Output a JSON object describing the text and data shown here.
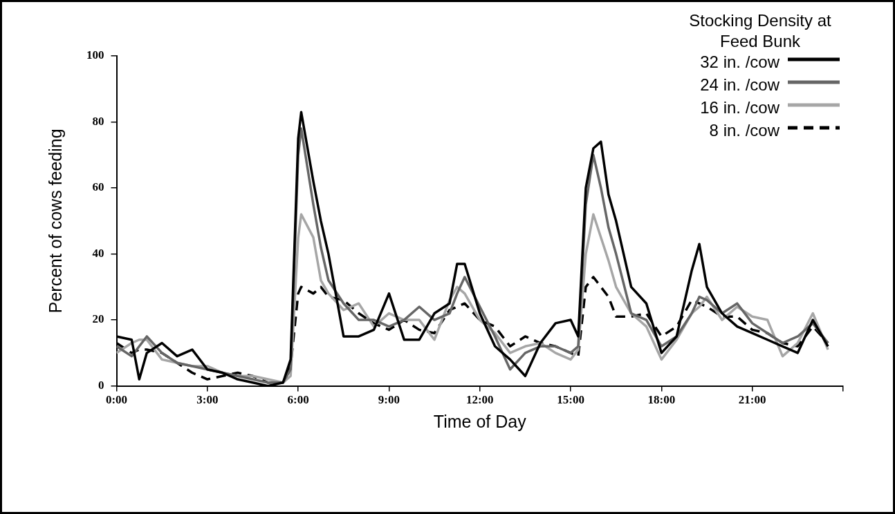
{
  "chart_data": {
    "type": "line",
    "xlabel": "Time of Day",
    "ylabel": "Percent of cows feeding",
    "legend_title": "Stocking Density at Feed Bunk",
    "legend": "top right",
    "grid": false,
    "marker": "none",
    "xlim": [
      0,
      24
    ],
    "xticks": [
      {
        "value": 0,
        "label": "0:00"
      },
      {
        "value": 3,
        "label": "3:00"
      },
      {
        "value": 6,
        "label": "6:00"
      },
      {
        "value": 9,
        "label": "9:00"
      },
      {
        "value": 12,
        "label": "12:00"
      },
      {
        "value": 15,
        "label": "15:00"
      },
      {
        "value": 18,
        "label": "18:00"
      },
      {
        "value": 21,
        "label": "21:00"
      },
      {
        "value": 24,
        "label": null
      }
    ],
    "ylim": [
      0,
      100
    ],
    "yticks": [
      0,
      20,
      40,
      60,
      80,
      100
    ],
    "x": [
      0,
      0.5,
      0.75,
      1,
      1.5,
      2,
      2.5,
      3,
      3.5,
      4,
      4.5,
      5,
      5.5,
      5.75,
      6,
      6.1,
      6.5,
      6.75,
      7,
      7.5,
      8,
      8.5,
      9,
      9.5,
      10,
      10.5,
      11,
      11.25,
      11.5,
      12,
      12.5,
      13,
      13.5,
      14,
      14.5,
      15,
      15.25,
      15.5,
      15.75,
      16,
      16.25,
      16.5,
      17,
      17.5,
      18,
      18.5,
      19,
      19.25,
      19.5,
      20,
      20.5,
      21,
      21.5,
      22,
      22.5,
      23,
      23.5
    ],
    "series": [
      {
        "name": "32 in. /cow",
        "color": "#000000",
        "line_style": "solid",
        "values": [
          15,
          14,
          2,
          10,
          13,
          9,
          11,
          5,
          4,
          2,
          1,
          0,
          1,
          8,
          75,
          83,
          62,
          50,
          40,
          15,
          15,
          17,
          28,
          14,
          14,
          22,
          25,
          37,
          37,
          22,
          12,
          8,
          3,
          13,
          19,
          20,
          15,
          60,
          72,
          74,
          58,
          50,
          30,
          25,
          10,
          15,
          35,
          43,
          30,
          22,
          18,
          16,
          14,
          12,
          10,
          20,
          12
        ]
      },
      {
        "name": "24 in. /cow",
        "color": "#666666",
        "line_style": "solid",
        "values": [
          12,
          9,
          12,
          15,
          10,
          7,
          6,
          5,
          4,
          3,
          2,
          1,
          1,
          5,
          70,
          78,
          55,
          42,
          32,
          25,
          20,
          20,
          18,
          20,
          24,
          20,
          22,
          28,
          33,
          24,
          15,
          5,
          10,
          12,
          12,
          10,
          12,
          55,
          70,
          60,
          48,
          40,
          22,
          20,
          12,
          15,
          22,
          27,
          26,
          22,
          25,
          19,
          16,
          13,
          15,
          19,
          13
        ]
      },
      {
        "name": "16 in. /cow",
        "color": "#a6a6a6",
        "line_style": "solid",
        "values": [
          10,
          13,
          14,
          14,
          8,
          7,
          6,
          6,
          4,
          3,
          3,
          2,
          1,
          3,
          45,
          52,
          45,
          32,
          28,
          23,
          25,
          18,
          22,
          20,
          20,
          14,
          26,
          30,
          28,
          20,
          16,
          10,
          12,
          13,
          10,
          8,
          11,
          40,
          52,
          45,
          38,
          30,
          22,
          18,
          8,
          14,
          22,
          24,
          27,
          20,
          24,
          21,
          20,
          9,
          13,
          22,
          11
        ]
      },
      {
        "name": "8 in. /cow",
        "color": "#000000",
        "line_style": "dashed",
        "values": [
          13,
          10,
          11,
          11,
          10,
          7,
          4,
          2,
          3,
          4,
          3,
          1,
          1,
          6,
          28,
          30,
          28,
          30,
          27,
          26,
          22,
          19,
          17,
          20,
          17,
          16,
          23,
          24,
          25,
          20,
          18,
          12,
          15,
          13,
          12,
          10,
          9,
          30,
          33,
          30,
          27,
          21,
          21,
          22,
          15,
          18,
          26,
          25,
          24,
          21,
          21,
          17,
          16,
          13,
          12,
          18,
          13
        ]
      }
    ]
  }
}
